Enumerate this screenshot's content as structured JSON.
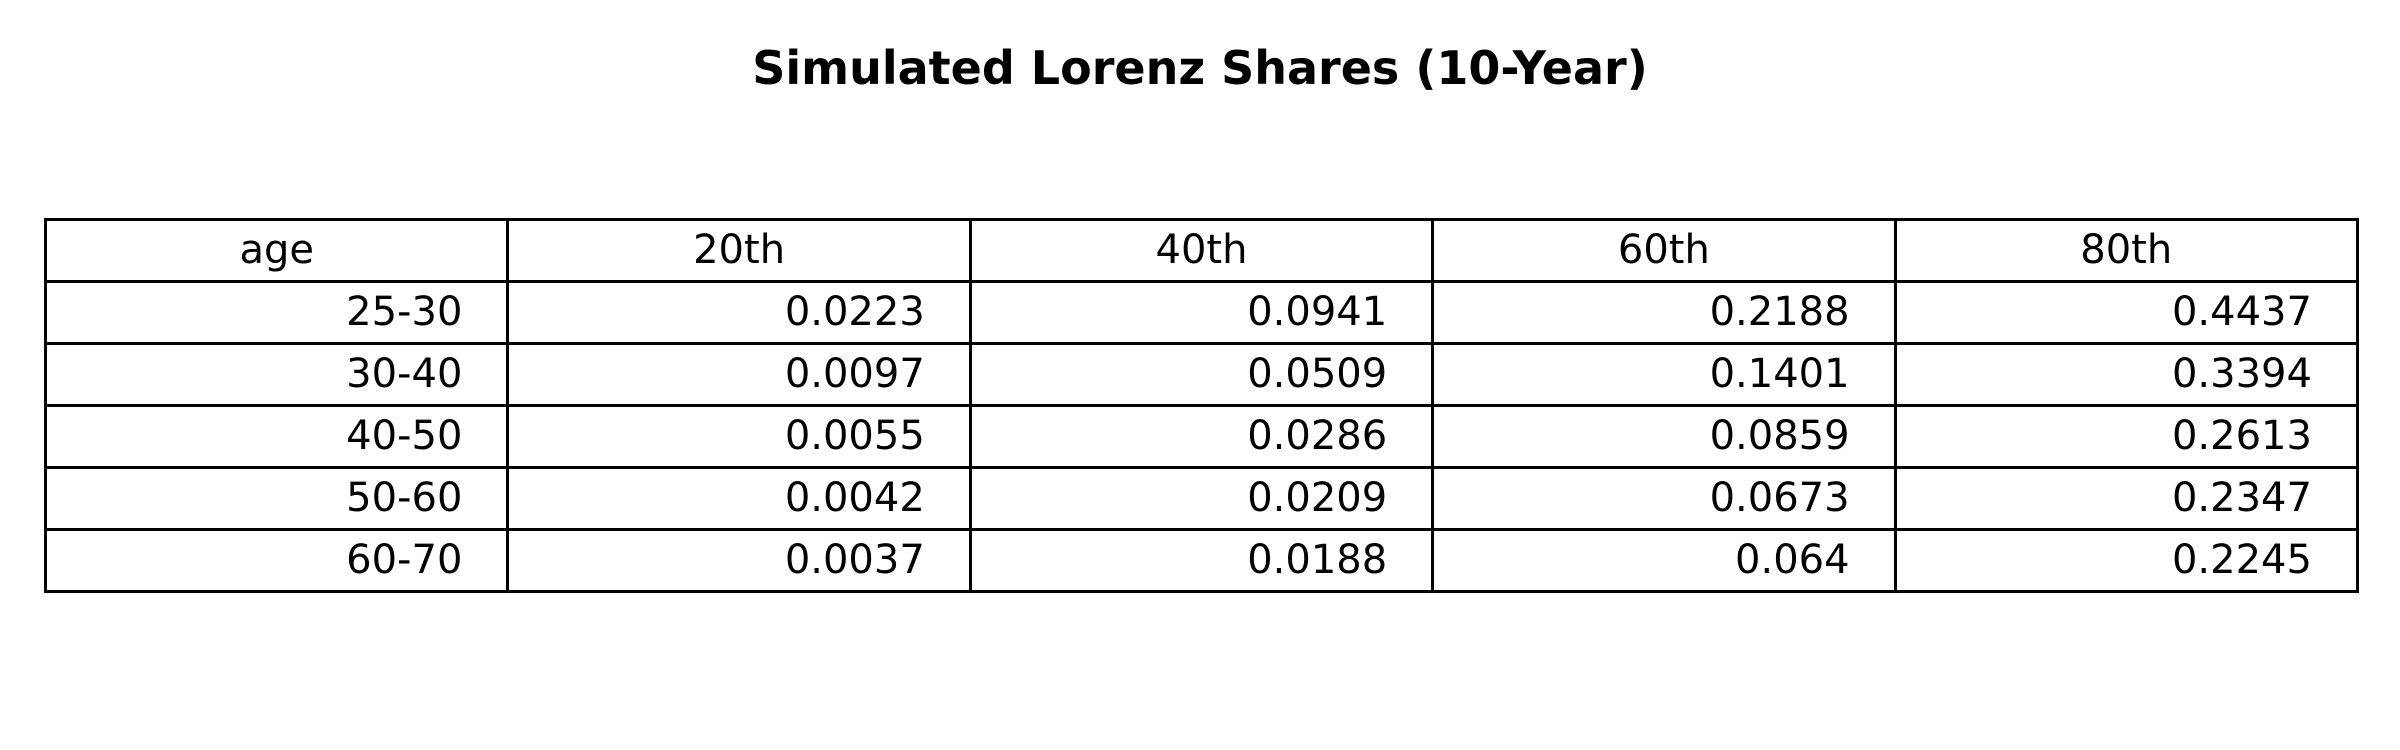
{
  "chart_data": {
    "type": "table",
    "title": "Simulated Lorenz Shares (10-Year)",
    "columns": [
      "age",
      "20th",
      "40th",
      "60th",
      "80th"
    ],
    "rows": [
      [
        "25-30",
        "0.0223",
        "0.0941",
        "0.2188",
        "0.4437"
      ],
      [
        "30-40",
        "0.0097",
        "0.0509",
        "0.1401",
        "0.3394"
      ],
      [
        "40-50",
        "0.0055",
        "0.0286",
        "0.0859",
        "0.2613"
      ],
      [
        "50-60",
        "0.0042",
        "0.0209",
        "0.0673",
        "0.2347"
      ],
      [
        "60-70",
        "0.0037",
        "0.0188",
        "0.064",
        "0.2245"
      ]
    ]
  }
}
